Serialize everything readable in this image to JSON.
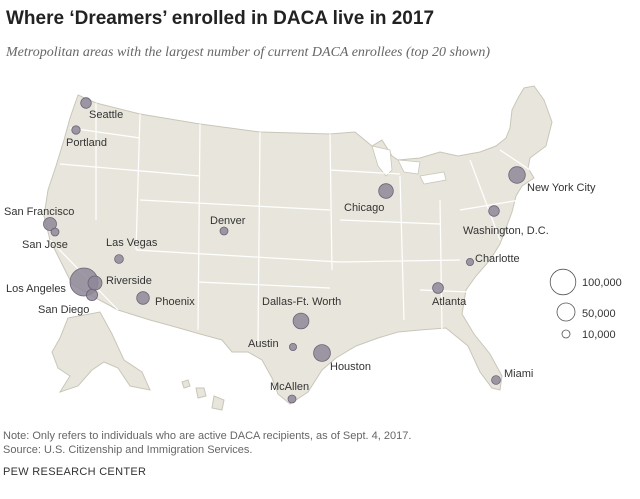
{
  "header": {
    "title": "Where ‘Dreamers’ enrolled in DACA live in 2017",
    "subtitle": "Metropolitan areas with the largest number of current DACA enrollees (top 20 shown)"
  },
  "footer": {
    "note": "Note: Only refers to individuals who are active DACA recipients, as of Sept. 4, 2017.",
    "source": "Source: U.S. Citizenship and Immigration Services.",
    "org": "PEW RESEARCH CENTER"
  },
  "colors": {
    "land": "#e8e6dc",
    "state_border": "#ffffff",
    "bubble_fill": "#8e8799",
    "bubble_stroke": "#6a6377"
  },
  "legend": {
    "items": [
      {
        "label": "100,000",
        "value": 100000
      },
      {
        "label": "50,000",
        "value": 50000
      },
      {
        "label": "10,000",
        "value": 10000
      }
    ]
  },
  "cities": [
    {
      "name": "Seattle",
      "value": 17000
    },
    {
      "name": "Portland",
      "value": 11000
    },
    {
      "name": "San Francisco",
      "value": 26000
    },
    {
      "name": "San Jose",
      "value": 10000
    },
    {
      "name": "Las Vegas",
      "value": 12000
    },
    {
      "name": "Los Angeles",
      "value": 120000
    },
    {
      "name": "Riverside",
      "value": 30000
    },
    {
      "name": "San Diego",
      "value": 19000
    },
    {
      "name": "Phoenix",
      "value": 24000
    },
    {
      "name": "Denver",
      "value": 10000
    },
    {
      "name": "Dallas-Ft. Worth",
      "value": 38000
    },
    {
      "name": "Austin",
      "value": 8000
    },
    {
      "name": "Houston",
      "value": 43000
    },
    {
      "name": "McAllen",
      "value": 10000
    },
    {
      "name": "Chicago",
      "value": 33000
    },
    {
      "name": "Atlanta",
      "value": 18000
    },
    {
      "name": "Charlotte",
      "value": 8000
    },
    {
      "name": "Washington, D.C.",
      "value": 17000
    },
    {
      "name": "New York City",
      "value": 42000
    },
    {
      "name": "Miami",
      "value": 12000
    }
  ]
}
